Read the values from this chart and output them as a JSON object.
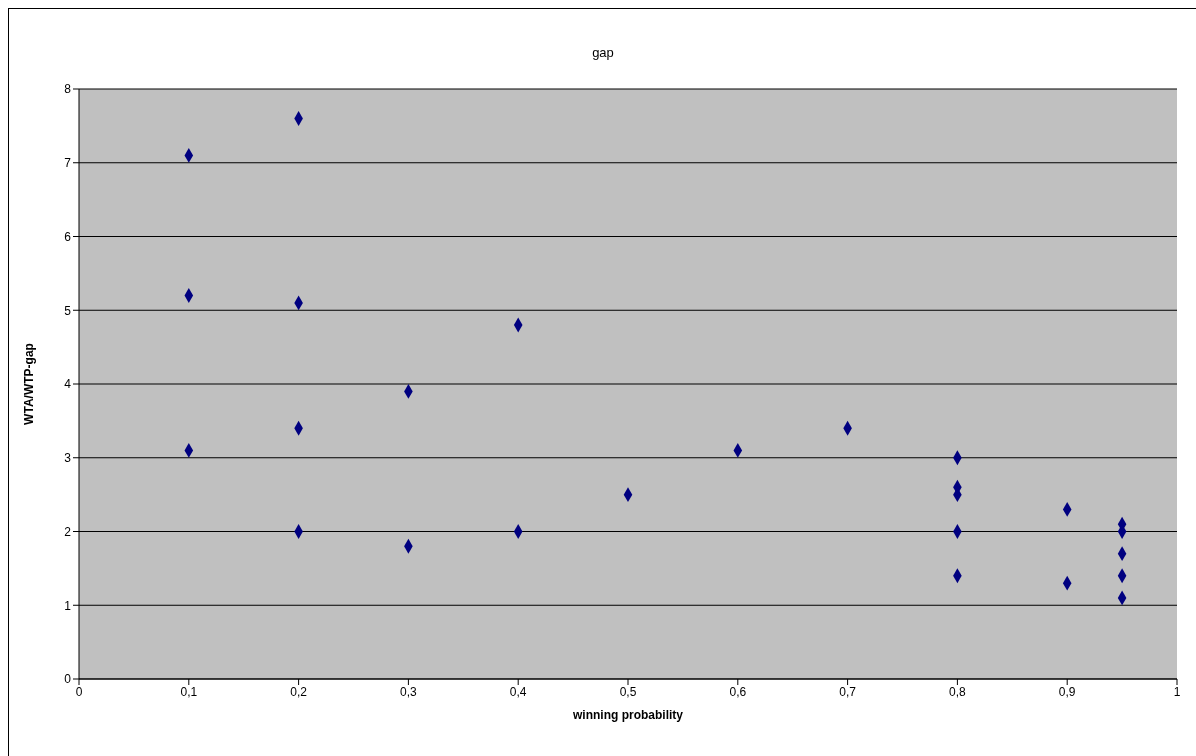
{
  "chart_data": {
    "type": "scatter",
    "title": "gap",
    "xlabel": "winning probability",
    "ylabel": "WTA/WTP-gap",
    "x": [
      0.1,
      0.1,
      0.1,
      0.2,
      0.2,
      0.2,
      0.2,
      0.3,
      0.3,
      0.4,
      0.4,
      0.5,
      0.6,
      0.7,
      0.8,
      0.8,
      0.8,
      0.8,
      0.8,
      0.9,
      0.9,
      0.95,
      0.95,
      0.95,
      0.95,
      0.95
    ],
    "values": [
      7.1,
      5.2,
      3.1,
      7.6,
      5.1,
      3.4,
      2.0,
      3.9,
      1.8,
      4.8,
      2.0,
      2.5,
      3.1,
      3.4,
      3.0,
      2.6,
      2.5,
      2.0,
      1.4,
      2.3,
      1.3,
      2.1,
      2.0,
      1.7,
      1.4,
      1.1
    ],
    "color": "#000080",
    "marker": "diamond",
    "grid": "y",
    "legend": false,
    "xlim": [
      0,
      1
    ],
    "xticks": [
      0,
      {
        "value": 0.1,
        "label": "0,1"
      },
      {
        "value": 0.2,
        "label": "0,2"
      },
      {
        "value": 0.3,
        "label": "0,3"
      },
      {
        "value": 0.4,
        "label": "0,4"
      },
      {
        "value": 0.5,
        "label": "0,5"
      },
      {
        "value": 0.6,
        "label": "0,6"
      },
      {
        "value": 0.7,
        "label": "0,7"
      },
      {
        "value": 0.8,
        "label": "0,8"
      },
      {
        "value": 0.9,
        "label": "0,9"
      },
      1
    ],
    "ylim": [
      0,
      8
    ],
    "yticks": [
      0,
      1,
      2,
      3,
      4,
      5,
      6,
      7,
      8
    ]
  }
}
